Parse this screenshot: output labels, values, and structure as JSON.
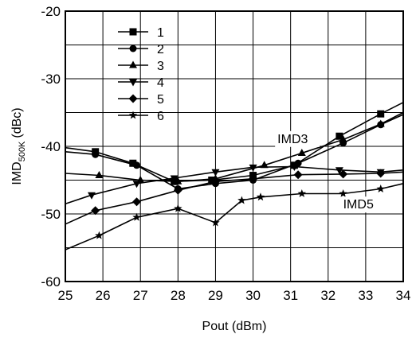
{
  "chart_data": {
    "type": "line",
    "title": "",
    "xlabel": "Pout (dBm)",
    "ylabel": {
      "main": "IMD",
      "sub": "500K",
      "unit": "(dBc)"
    },
    "xlim": [
      25,
      34
    ],
    "ylim": [
      -60,
      -20
    ],
    "x_ticks": [
      25,
      26,
      27,
      28,
      29,
      30,
      31,
      32,
      33,
      34
    ],
    "y_ticks": [
      -60,
      -50,
      -40,
      -30,
      -20
    ],
    "grid": true,
    "legend_position": "top-left",
    "series": [
      {
        "name": "1",
        "marker": "square",
        "x": [
          25,
          25.8,
          26.8,
          27.9,
          28.9,
          30.0,
          31.1,
          32.3,
          33.4,
          34.0
        ],
        "y": [
          -40.2,
          -40.8,
          -42.5,
          -45.2,
          -45.0,
          -44.3,
          -42.8,
          -38.5,
          -35.2,
          -33.5
        ]
      },
      {
        "name": "2",
        "marker": "circle",
        "x": [
          25,
          25.8,
          26.9,
          28.0,
          29.0,
          30.0,
          31.2,
          32.4,
          33.4,
          34.0
        ],
        "y": [
          -40.8,
          -41.2,
          -42.8,
          -46.3,
          -45.5,
          -45.0,
          -42.5,
          -39.5,
          -36.8,
          -35.3
        ]
      },
      {
        "name": "3",
        "marker": "triangle-up",
        "x": [
          25,
          25.9,
          27.0,
          28.0,
          29.0,
          30.3,
          31.3,
          32.4,
          33.4,
          34.0
        ],
        "y": [
          -44.0,
          -44.3,
          -45.0,
          -45.2,
          -44.8,
          -42.8,
          -41.0,
          -39.0,
          -36.7,
          -35.0
        ]
      },
      {
        "name": "4",
        "marker": "triangle-down",
        "x": [
          25,
          25.7,
          26.9,
          27.9,
          29.0,
          30.0,
          31.1,
          32.3,
          33.4,
          34.0
        ],
        "y": [
          -48.5,
          -47.2,
          -45.5,
          -44.7,
          -43.8,
          -43.1,
          -43.0,
          -43.5,
          -43.8,
          -43.5
        ]
      },
      {
        "name": "5",
        "marker": "diamond",
        "x": [
          25,
          25.8,
          26.9,
          28.0,
          29.0,
          30.0,
          31.2,
          32.4,
          33.4,
          34.0
        ],
        "y": [
          -51.5,
          -49.5,
          -48.2,
          -46.5,
          -45.2,
          -44.8,
          -44.2,
          -44.1,
          -44.0,
          -43.8
        ]
      },
      {
        "name": "6",
        "marker": "star",
        "x": [
          25,
          25.9,
          26.9,
          28.0,
          29.0,
          29.7,
          30.2,
          31.3,
          32.4,
          33.4,
          34.0
        ],
        "y": [
          -55.3,
          -53.2,
          -50.5,
          -49.2,
          -51.3,
          -48.0,
          -47.5,
          -47.0,
          -47.0,
          -46.3,
          -45.5
        ]
      }
    ],
    "annotations": [
      {
        "text": "IMD3",
        "x": 30.65,
        "y": -39.5
      },
      {
        "text": "IMD5",
        "x": 32.4,
        "y": -49.2
      }
    ]
  }
}
